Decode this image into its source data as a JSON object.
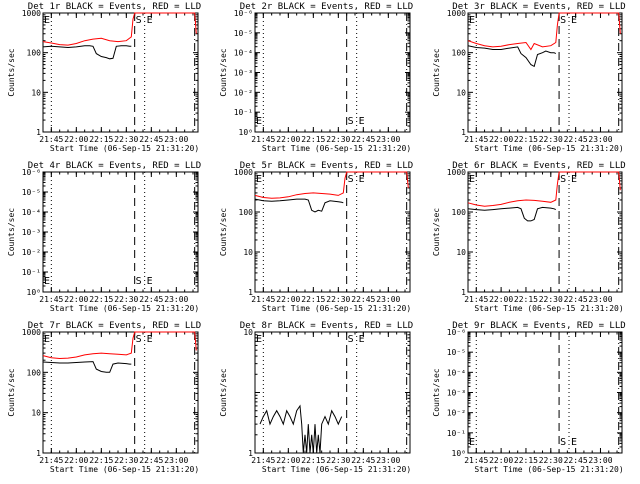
{
  "colors": {
    "events": "#000000",
    "lld": "#ff0000",
    "background": "#ffffff"
  },
  "chart_data": [
    {
      "type": "line",
      "panel": "1r",
      "title": "Det 1r BLACK = Events, RED = LLD",
      "xlabel": "Start Time (06-Sep-15 21:31:20)",
      "ylabel": "Counts/sec",
      "yscale": "log",
      "ylim": [
        1,
        1000
      ],
      "ytick_labels": [
        "1",
        "10",
        "100",
        "1000"
      ],
      "xtick_labels": [
        "21:45",
        "22:00",
        "22:15",
        "22:30",
        "22:45",
        "23:00"
      ],
      "markers": {
        "E_left": "E",
        "S": "S",
        "E": "E"
      },
      "series": [
        {
          "name": "Events",
          "color": "#000000",
          "x": [
            "21:40",
            "21:45",
            "21:50",
            "21:55",
            "22:00",
            "22:05",
            "22:08",
            "22:10",
            "22:12",
            "22:15",
            "22:18",
            "22:20",
            "22:22",
            "22:24",
            "22:27",
            "22:30",
            "22:32",
            "22:33"
          ],
          "values": [
            140,
            145,
            140,
            135,
            140,
            150,
            150,
            145,
            95,
            80,
            75,
            70,
            72,
            145,
            150,
            150,
            145,
            145
          ]
        },
        {
          "name": "LLD",
          "color": "#ff0000",
          "x": [
            "21:40",
            "21:45",
            "21:50",
            "21:55",
            "22:00",
            "22:05",
            "22:10",
            "22:15",
            "22:20",
            "22:25",
            "22:30",
            "22:33",
            "22:34",
            "22:35",
            "23:11",
            "23:12"
          ],
          "values": [
            190,
            175,
            160,
            155,
            170,
            200,
            220,
            230,
            200,
            190,
            200,
            250,
            700,
            1000,
            1000,
            300
          ]
        }
      ]
    },
    {
      "type": "line",
      "panel": "2r",
      "title": "Det 2r BLACK = Events, RED = LLD",
      "xlabel": "Start Time (06-Sep-15 21:31:20)",
      "ylabel": "Counts/sec",
      "yscale": "log",
      "ylim": [
        1,
        1000000
      ],
      "ytick_labels": [
        "10⁰",
        "10⁻¹",
        "10⁻²",
        "10⁻³",
        "10⁻⁴",
        "10⁻⁵",
        "10⁻⁶"
      ],
      "xtick_labels": [
        "21:45",
        "22:00",
        "22:15",
        "22:30",
        "22:45",
        "23:00"
      ],
      "markers": {
        "E_left": "E",
        "S": "S",
        "E": "E"
      },
      "series": []
    },
    {
      "type": "line",
      "panel": "3r",
      "title": "Det 3r BLACK = Events, RED = LLD",
      "xlabel": "Start Time (06-Sep-15 21:31:20)",
      "ylabel": "Counts/sec",
      "yscale": "log",
      "ylim": [
        1,
        1000
      ],
      "ytick_labels": [
        "1",
        "10",
        "100",
        "1000"
      ],
      "xtick_labels": [
        "21:45",
        "22:00",
        "22:15",
        "22:30",
        "22:45",
        "23:00"
      ],
      "markers": {
        "E_left": "E",
        "S": "S",
        "E": "E"
      },
      "series": [
        {
          "name": "Events",
          "color": "#000000",
          "x": [
            "21:40",
            "21:45",
            "21:50",
            "21:55",
            "22:00",
            "22:05",
            "22:10",
            "22:12",
            "22:15",
            "22:18",
            "22:20",
            "22:22",
            "22:25",
            "22:27",
            "22:30",
            "22:32",
            "22:33"
          ],
          "values": [
            150,
            135,
            130,
            120,
            120,
            130,
            140,
            95,
            75,
            50,
            45,
            90,
            100,
            110,
            100,
            100,
            95
          ]
        },
        {
          "name": "LLD",
          "color": "#ff0000",
          "x": [
            "21:40",
            "21:45",
            "21:50",
            "21:55",
            "22:00",
            "22:05",
            "22:10",
            "22:15",
            "22:18",
            "22:20",
            "22:25",
            "22:30",
            "22:33",
            "22:34",
            "22:35",
            "23:11",
            "23:12"
          ],
          "values": [
            200,
            170,
            150,
            140,
            145,
            160,
            170,
            180,
            120,
            170,
            140,
            150,
            180,
            500,
            1000,
            1000,
            300
          ]
        }
      ]
    },
    {
      "type": "line",
      "panel": "4r",
      "title": "Det 4r BLACK = Events, RED = LLD",
      "xlabel": "Start Time (06-Sep-15 21:31:20)",
      "ylabel": "Counts/sec",
      "yscale": "log",
      "ylim": [
        1,
        1000000
      ],
      "ytick_labels": [
        "10⁰",
        "10⁻¹",
        "10⁻²",
        "10⁻³",
        "10⁻⁴",
        "10⁻⁵",
        "10⁻⁶"
      ],
      "xtick_labels": [
        "21:45",
        "22:00",
        "22:15",
        "22:30",
        "22:45",
        "23:00"
      ],
      "markers": {
        "E_left": "E",
        "S": "S",
        "E": "E"
      },
      "series": []
    },
    {
      "type": "line",
      "panel": "5r",
      "title": "Det 5r BLACK = Events, RED = LLD",
      "xlabel": "Start Time (06-Sep-15 21:31:20)",
      "ylabel": "Counts/sec",
      "yscale": "log",
      "ylim": [
        1,
        1000
      ],
      "ytick_labels": [
        "1",
        "10",
        "100",
        "1000"
      ],
      "xtick_labels": [
        "21:45",
        "22:00",
        "22:15",
        "22:30",
        "22:45",
        "23:00"
      ],
      "markers": {
        "E_left": "E",
        "S": "S",
        "E": "E"
      },
      "series": [
        {
          "name": "Events",
          "color": "#000000",
          "x": [
            "21:40",
            "21:45",
            "21:50",
            "21:55",
            "22:00",
            "22:05",
            "22:10",
            "22:12",
            "22:14",
            "22:16",
            "22:18",
            "22:20",
            "22:22",
            "22:25",
            "22:30",
            "22:32",
            "22:33"
          ],
          "values": [
            210,
            190,
            185,
            190,
            200,
            210,
            210,
            200,
            110,
            100,
            110,
            105,
            170,
            190,
            180,
            175,
            170
          ]
        },
        {
          "name": "LLD",
          "color": "#ff0000",
          "x": [
            "21:40",
            "21:45",
            "21:50",
            "21:55",
            "22:00",
            "22:05",
            "22:10",
            "22:15",
            "22:20",
            "22:25",
            "22:30",
            "22:33",
            "22:34",
            "22:35",
            "23:11",
            "23:12"
          ],
          "values": [
            260,
            230,
            220,
            225,
            240,
            270,
            290,
            300,
            290,
            280,
            260,
            300,
            700,
            1000,
            1000,
            400
          ]
        }
      ]
    },
    {
      "type": "line",
      "panel": "6r",
      "title": "Det 6r BLACK = Events, RED = LLD",
      "xlabel": "Start Time (06-Sep-15 21:31:20)",
      "ylabel": "Counts/sec",
      "yscale": "log",
      "ylim": [
        1,
        1000
      ],
      "ytick_labels": [
        "1",
        "10",
        "100",
        "1000"
      ],
      "xtick_labels": [
        "21:45",
        "22:00",
        "22:15",
        "22:30",
        "22:45",
        "23:00"
      ],
      "markers": {
        "E_left": "E",
        "S": "S",
        "E": "E"
      },
      "series": [
        {
          "name": "Events",
          "color": "#000000",
          "x": [
            "21:40",
            "21:45",
            "21:50",
            "21:55",
            "22:00",
            "22:05",
            "22:10",
            "22:12",
            "22:14",
            "22:16",
            "22:18",
            "22:20",
            "22:22",
            "22:25",
            "22:30",
            "22:32",
            "22:33"
          ],
          "values": [
            120,
            115,
            110,
            115,
            120,
            125,
            130,
            120,
            70,
            60,
            60,
            65,
            120,
            130,
            125,
            120,
            115
          ]
        },
        {
          "name": "LLD",
          "color": "#ff0000",
          "x": [
            "21:40",
            "21:45",
            "21:50",
            "21:55",
            "22:00",
            "22:05",
            "22:10",
            "22:15",
            "22:20",
            "22:25",
            "22:30",
            "22:33",
            "22:34",
            "22:35",
            "23:11",
            "23:12"
          ],
          "values": [
            170,
            150,
            140,
            145,
            155,
            175,
            190,
            200,
            195,
            185,
            175,
            200,
            500,
            1000,
            1000,
            350
          ]
        }
      ]
    },
    {
      "type": "line",
      "panel": "7r",
      "title": "Det 7r BLACK = Events, RED = LLD",
      "xlabel": "Start Time (06-Sep-15 21:31:20)",
      "ylabel": "Counts/sec",
      "yscale": "log",
      "ylim": [
        1,
        1000
      ],
      "ytick_labels": [
        "1",
        "10",
        "100",
        "1000"
      ],
      "xtick_labels": [
        "21:45",
        "22:00",
        "22:15",
        "22:30",
        "22:45",
        "23:00"
      ],
      "markers": {
        "E_left": "E",
        "S": "S",
        "E": "E"
      },
      "series": [
        {
          "name": "Events",
          "color": "#000000",
          "x": [
            "21:40",
            "21:45",
            "21:50",
            "21:55",
            "22:00",
            "22:05",
            "22:10",
            "22:12",
            "22:15",
            "22:18",
            "22:20",
            "22:22",
            "22:25",
            "22:30",
            "22:32",
            "22:33"
          ],
          "values": [
            180,
            175,
            170,
            170,
            175,
            180,
            185,
            120,
            105,
            100,
            100,
            160,
            170,
            165,
            160,
            160
          ]
        },
        {
          "name": "LLD",
          "color": "#ff0000",
          "x": [
            "21:40",
            "21:45",
            "21:50",
            "21:55",
            "22:00",
            "22:05",
            "22:10",
            "22:15",
            "22:20",
            "22:25",
            "22:30",
            "22:33",
            "22:34",
            "22:35",
            "23:11",
            "23:12"
          ],
          "values": [
            260,
            230,
            220,
            225,
            240,
            270,
            290,
            300,
            290,
            280,
            270,
            300,
            700,
            1000,
            1000,
            350
          ]
        }
      ]
    },
    {
      "type": "line",
      "panel": "8r",
      "title": "Det 8r BLACK = Events, RED = LLD",
      "xlabel": "Start Time (06-Sep-15 21:31:20)",
      "ylabel": "Counts/sec",
      "yscale": "log",
      "ylim": [
        1,
        100
      ],
      "ytick_labels": [
        "1",
        "10"
      ],
      "xtick_labels": [
        "21:45",
        "22:00",
        "22:15",
        "22:30",
        "22:45",
        "23:00"
      ],
      "markers": {
        "E_left": "E",
        "S": "S",
        "E": "E"
      },
      "series": [
        {
          "name": "Events",
          "color": "#000000",
          "x": [
            "21:43",
            "21:45",
            "21:47",
            "21:49",
            "21:51",
            "21:53",
            "21:55",
            "21:57",
            "21:59",
            "22:01",
            "22:03",
            "22:05",
            "22:07",
            "22:08",
            "22:09",
            "22:10",
            "22:11",
            "22:12",
            "22:13",
            "22:14",
            "22:15",
            "22:16",
            "22:17",
            "22:18",
            "22:19",
            "22:20",
            "22:22",
            "22:24",
            "22:26",
            "22:28",
            "22:30",
            "22:32"
          ],
          "values": [
            3,
            4,
            5,
            3,
            4,
            5,
            4,
            3,
            5,
            4,
            3,
            5,
            6,
            3,
            1,
            2,
            1,
            3,
            1,
            2,
            1,
            3,
            1,
            2,
            1,
            3,
            4,
            3,
            5,
            4,
            3,
            4
          ]
        }
      ]
    },
    {
      "type": "line",
      "panel": "9r",
      "title": "Det 9r BLACK = Events, RED = LLD",
      "xlabel": "Start Time (06-Sep-15 21:31:20)",
      "ylabel": "Counts/sec",
      "yscale": "log",
      "ylim": [
        1,
        1000000
      ],
      "ytick_labels": [
        "10⁰",
        "10⁻¹",
        "10⁻²",
        "10⁻³",
        "10⁻⁴",
        "10⁻⁵",
        "10⁻⁶"
      ],
      "xtick_labels": [
        "21:45",
        "22:00",
        "22:15",
        "22:30",
        "22:45",
        "23:00"
      ],
      "markers": {
        "E_left": "E",
        "S": "S",
        "E": "E"
      },
      "series": []
    }
  ]
}
